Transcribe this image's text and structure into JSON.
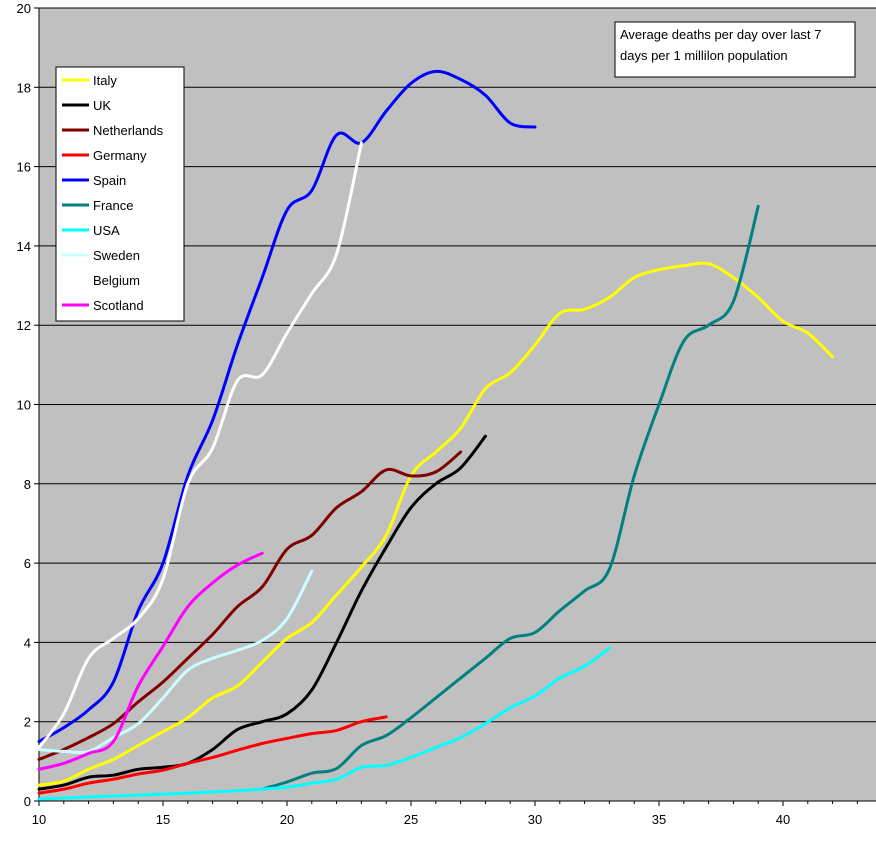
{
  "chart_data": {
    "type": "line",
    "title": "",
    "xlabel": "",
    "ylabel": "",
    "xlim": [
      10,
      44
    ],
    "ylim": [
      0,
      20
    ],
    "x_ticks": [
      10,
      15,
      20,
      25,
      30,
      35,
      40
    ],
    "y_ticks": [
      0,
      2,
      4,
      6,
      8,
      10,
      12,
      14,
      16,
      18,
      20
    ],
    "grid": "horizontal",
    "plot_background": "#C0C0C0",
    "legend_position": "top-left",
    "annotation": {
      "lines": [
        "Average deaths per day over last 7",
        "days per 1 millilon population"
      ],
      "position": "top-right"
    },
    "series": [
      {
        "name": "Italy",
        "color": "#FFFF00",
        "points": [
          [
            10,
            0.4
          ],
          [
            11,
            0.5
          ],
          [
            12,
            0.8
          ],
          [
            13,
            1.05
          ],
          [
            14,
            1.4
          ],
          [
            15,
            1.75
          ],
          [
            16,
            2.1
          ],
          [
            17,
            2.6
          ],
          [
            18,
            2.9
          ],
          [
            19,
            3.5
          ],
          [
            20,
            4.1
          ],
          [
            21,
            4.5
          ],
          [
            22,
            5.2
          ],
          [
            23,
            5.9
          ],
          [
            24,
            6.7
          ],
          [
            25,
            8.2
          ],
          [
            26,
            8.8
          ],
          [
            27,
            9.4
          ],
          [
            28,
            10.4
          ],
          [
            29,
            10.8
          ],
          [
            30,
            11.5
          ],
          [
            31,
            12.3
          ],
          [
            32,
            12.4
          ],
          [
            33,
            12.7
          ],
          [
            34,
            13.2
          ],
          [
            35,
            13.4
          ],
          [
            36,
            13.5
          ],
          [
            37,
            13.55
          ],
          [
            38,
            13.2
          ],
          [
            39,
            12.7
          ],
          [
            40,
            12.1
          ],
          [
            41,
            11.8
          ],
          [
            42,
            11.2
          ]
        ]
      },
      {
        "name": "UK",
        "color": "#000000",
        "points": [
          [
            10,
            0.3
          ],
          [
            11,
            0.4
          ],
          [
            12,
            0.6
          ],
          [
            13,
            0.65
          ],
          [
            14,
            0.8
          ],
          [
            15,
            0.85
          ],
          [
            16,
            0.95
          ],
          [
            17,
            1.3
          ],
          [
            18,
            1.8
          ],
          [
            19,
            2.0
          ],
          [
            20,
            2.2
          ],
          [
            21,
            2.8
          ],
          [
            22,
            4.0
          ],
          [
            23,
            5.3
          ],
          [
            24,
            6.4
          ],
          [
            25,
            7.4
          ],
          [
            26,
            8.0
          ],
          [
            27,
            8.4
          ],
          [
            28,
            9.2
          ]
        ]
      },
      {
        "name": "Netherlands",
        "color": "#800000",
        "points": [
          [
            10,
            1.05
          ],
          [
            11,
            1.3
          ],
          [
            12,
            1.6
          ],
          [
            13,
            1.95
          ],
          [
            14,
            2.5
          ],
          [
            15,
            3.0
          ],
          [
            16,
            3.6
          ],
          [
            17,
            4.2
          ],
          [
            18,
            4.9
          ],
          [
            19,
            5.4
          ],
          [
            20,
            6.35
          ],
          [
            21,
            6.7
          ],
          [
            22,
            7.4
          ],
          [
            23,
            7.8
          ],
          [
            24,
            8.35
          ],
          [
            25,
            8.2
          ],
          [
            26,
            8.3
          ],
          [
            27,
            8.8
          ]
        ]
      },
      {
        "name": "Germany",
        "color": "#FF0000",
        "points": [
          [
            10,
            0.2
          ],
          [
            11,
            0.3
          ],
          [
            12,
            0.45
          ],
          [
            13,
            0.55
          ],
          [
            14,
            0.68
          ],
          [
            15,
            0.78
          ],
          [
            16,
            0.95
          ],
          [
            17,
            1.1
          ],
          [
            18,
            1.28
          ],
          [
            19,
            1.45
          ],
          [
            20,
            1.58
          ],
          [
            21,
            1.7
          ],
          [
            22,
            1.78
          ],
          [
            23,
            2.0
          ],
          [
            24,
            2.12
          ]
        ]
      },
      {
        "name": "Spain",
        "color": "#0000FF",
        "points": [
          [
            10,
            1.5
          ],
          [
            11,
            1.85
          ],
          [
            12,
            2.3
          ],
          [
            13,
            3.0
          ],
          [
            14,
            4.8
          ],
          [
            15,
            6.0
          ],
          [
            16,
            8.2
          ],
          [
            17,
            9.6
          ],
          [
            18,
            11.5
          ],
          [
            19,
            13.2
          ],
          [
            20,
            14.9
          ],
          [
            21,
            15.4
          ],
          [
            22,
            16.8
          ],
          [
            23,
            16.6
          ],
          [
            24,
            17.4
          ],
          [
            25,
            18.1
          ],
          [
            26,
            18.4
          ],
          [
            27,
            18.2
          ],
          [
            28,
            17.8
          ],
          [
            29,
            17.1
          ],
          [
            30,
            17.0
          ]
        ]
      },
      {
        "name": "France",
        "color": "#008080",
        "points": [
          [
            19,
            0.3
          ],
          [
            20,
            0.48
          ],
          [
            21,
            0.7
          ],
          [
            22,
            0.82
          ],
          [
            23,
            1.4
          ],
          [
            24,
            1.65
          ],
          [
            25,
            2.1
          ],
          [
            26,
            2.6
          ],
          [
            27,
            3.1
          ],
          [
            28,
            3.6
          ],
          [
            29,
            4.1
          ],
          [
            30,
            4.25
          ],
          [
            31,
            4.8
          ],
          [
            32,
            5.3
          ],
          [
            33,
            5.85
          ],
          [
            34,
            8.2
          ],
          [
            35,
            10.0
          ],
          [
            36,
            11.6
          ],
          [
            37,
            12.0
          ],
          [
            38,
            12.6
          ],
          [
            39,
            15.0
          ]
        ]
      },
      {
        "name": "USA",
        "color": "#00FFFF",
        "points": [
          [
            10,
            0.05
          ],
          [
            12,
            0.1
          ],
          [
            14,
            0.15
          ],
          [
            16,
            0.2
          ],
          [
            18,
            0.26
          ],
          [
            19,
            0.3
          ],
          [
            20,
            0.35
          ],
          [
            21,
            0.45
          ],
          [
            22,
            0.55
          ],
          [
            23,
            0.85
          ],
          [
            24,
            0.9
          ],
          [
            25,
            1.1
          ],
          [
            26,
            1.35
          ],
          [
            27,
            1.6
          ],
          [
            28,
            1.95
          ],
          [
            29,
            2.35
          ],
          [
            30,
            2.65
          ],
          [
            31,
            3.1
          ],
          [
            32,
            3.4
          ],
          [
            33,
            3.85
          ]
        ]
      },
      {
        "name": "Sweden",
        "color": "#CCFFFF",
        "points": [
          [
            10,
            1.3
          ],
          [
            11,
            1.25
          ],
          [
            12,
            1.25
          ],
          [
            13,
            1.6
          ],
          [
            14,
            1.95
          ],
          [
            15,
            2.6
          ],
          [
            16,
            3.3
          ],
          [
            17,
            3.6
          ],
          [
            18,
            3.8
          ],
          [
            19,
            4.05
          ],
          [
            20,
            4.6
          ],
          [
            21,
            5.8
          ]
        ]
      },
      {
        "name": "Belgium",
        "color": "#FFFFFF",
        "points": [
          [
            10,
            1.35
          ],
          [
            11,
            2.2
          ],
          [
            12,
            3.6
          ],
          [
            13,
            4.1
          ],
          [
            14,
            4.6
          ],
          [
            15,
            5.6
          ],
          [
            16,
            8.0
          ],
          [
            17,
            8.9
          ],
          [
            18,
            10.6
          ],
          [
            19,
            10.75
          ],
          [
            20,
            11.8
          ],
          [
            21,
            12.8
          ],
          [
            22,
            13.8
          ],
          [
            23,
            16.6
          ]
        ]
      },
      {
        "name": "Scotland",
        "color": "#FF00FF",
        "points": [
          [
            10,
            0.8
          ],
          [
            11,
            0.95
          ],
          [
            12,
            1.2
          ],
          [
            13,
            1.5
          ],
          [
            14,
            2.9
          ],
          [
            15,
            3.9
          ],
          [
            16,
            4.9
          ],
          [
            17,
            5.5
          ],
          [
            18,
            5.95
          ],
          [
            19,
            6.25
          ]
        ]
      }
    ]
  }
}
